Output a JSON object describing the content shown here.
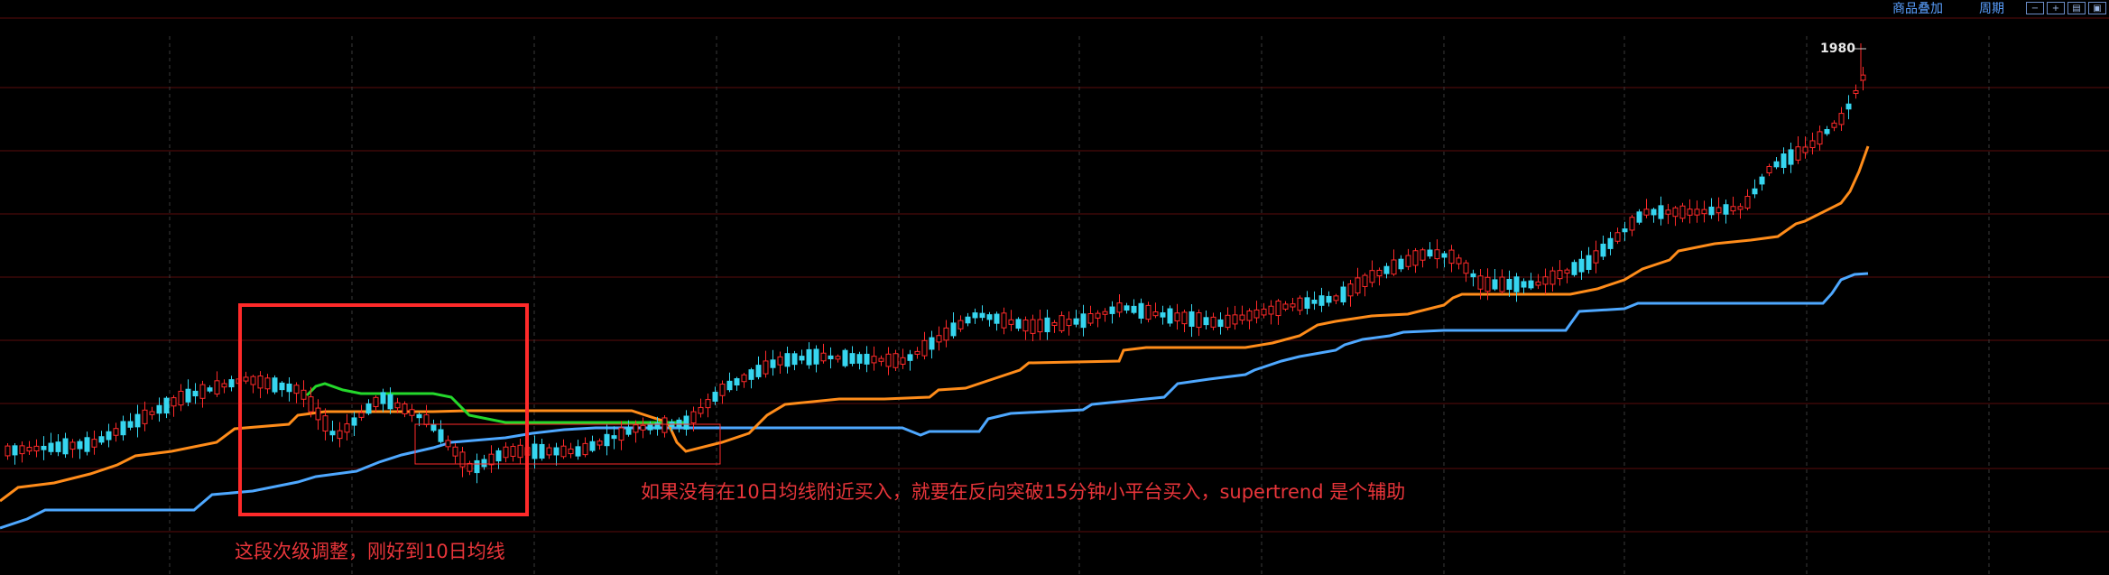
{
  "toolbar": {
    "overlay_label": "商品叠加",
    "period_label": "周期",
    "buttons": [
      "−",
      "+",
      "▤",
      "▣"
    ]
  },
  "colors": {
    "up": "#ff2a2a",
    "down": "#36d6f0",
    "supertrend_down": "#24d82b",
    "ma10": "#ff8c1a",
    "slow_line": "#4ea8ff",
    "grid": "#5a0d0d",
    "box": "#ff2a2a",
    "annotation": "#e8353a"
  },
  "chart_data": {
    "type": "candlestick",
    "title": "",
    "price_label": "1980",
    "annotations": [
      "这段次级调整，刚好到10日均线",
      "如果没有在10日均线附近买入，就要在反向突破15分钟小平台买入，supertrend 是个辅助"
    ],
    "series": [
      {
        "name": "",
        "kind": "line",
        "color_key": "ma10"
      },
      {
        "name": "",
        "kind": "line",
        "color_key": "slow_line"
      },
      {
        "name": "supertrend",
        "kind": "line",
        "color_key": "supertrend_down"
      }
    ],
    "ylim": [
      1000,
      2020
    ]
  }
}
